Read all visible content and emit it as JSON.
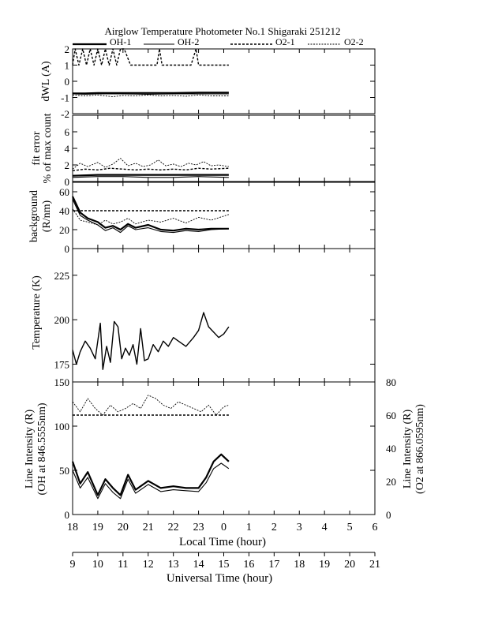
{
  "title": "Airglow Temperature Photometer No.1  Shigaraki  251212",
  "legend": [
    {
      "label": "OH-1",
      "style": "thick"
    },
    {
      "label": "OH-2",
      "style": "thin"
    },
    {
      "label": "O2-1",
      "style": "dash"
    },
    {
      "label": "O2-2",
      "style": "dot"
    }
  ],
  "panels": {
    "dwl": {
      "ylabel": "dWL (A)",
      "ticks": [
        "2",
        "1",
        "0",
        "-1",
        "-2"
      ]
    },
    "fit": {
      "ylabel1": "fit error",
      "ylabel2": "% of max count",
      "ticks": [
        "6",
        "4",
        "2",
        "0"
      ]
    },
    "bg": {
      "ylabel1": "background",
      "ylabel2": "(R/nm)",
      "ticks": [
        "60",
        "40",
        "20",
        "0"
      ]
    },
    "temp": {
      "ylabel": "Temperature (K)",
      "ticks": [
        "225",
        "200",
        "175"
      ]
    },
    "line": {
      "ylabel1": "Line Intensity (R)",
      "ylabel2": "(OH at 846.5555nm)",
      "ticks": [
        "150",
        "100",
        "50",
        "0"
      ],
      "rlabel1": "Line Intensity (R)",
      "rlabel2": "(O2 at 866.0595nm)",
      "rticks": [
        "80",
        "60",
        "40",
        "20",
        "0"
      ]
    }
  },
  "xaxis": {
    "local_label": "Local Time (hour)",
    "local_ticks": [
      "18",
      "19",
      "20",
      "21",
      "22",
      "23",
      "0",
      "1",
      "2",
      "3",
      "4",
      "5",
      "6"
    ],
    "ut_label": "Universal Time (hour)",
    "ut_ticks": [
      "9",
      "10",
      "11",
      "12",
      "13",
      "14",
      "15",
      "16",
      "17",
      "18",
      "19",
      "20",
      "21"
    ]
  },
  "chart_data": [
    {
      "type": "line",
      "panel": "dwl",
      "title": "dWL (A)",
      "x_range": [
        18,
        30
      ],
      "ylim": [
        -2,
        2
      ],
      "series": [
        {
          "name": "OH-1",
          "x": [
            18,
            18.5,
            19,
            20,
            21,
            22,
            23,
            24.2
          ],
          "values": [
            -0.75,
            -0.75,
            -0.72,
            -0.72,
            -0.72,
            -0.72,
            -0.7,
            -0.7
          ]
        },
        {
          "name": "OH-2",
          "x": [
            18,
            18.5,
            19,
            20,
            21,
            22,
            23,
            24.2
          ],
          "values": [
            -0.78,
            -0.8,
            -0.78,
            -0.78,
            -0.8,
            -0.78,
            -0.78,
            -0.78
          ]
        },
        {
          "name": "O2-1",
          "x": [
            18,
            18.1,
            18.25,
            18.4,
            18.55,
            18.7,
            18.85,
            19,
            19.15,
            19.3,
            19.45,
            19.6,
            19.75,
            19.9,
            20.05,
            20.3,
            20.6,
            21,
            21.35,
            21.45,
            21.55,
            22,
            22.5,
            22.7,
            22.9,
            23,
            23.2,
            24.2
          ],
          "values": [
            1,
            2,
            1,
            2,
            1,
            2,
            1,
            2,
            1,
            2,
            1,
            2,
            1,
            2,
            2,
            1,
            1,
            1,
            1,
            2,
            1,
            1,
            1,
            1,
            2,
            1,
            1,
            1
          ]
        },
        {
          "name": "O2-2",
          "x": [
            18,
            18.5,
            19,
            19.3,
            19.6,
            20,
            20.5,
            21,
            21.5,
            22,
            22.5,
            23,
            23.5,
            24.2
          ],
          "values": [
            -0.85,
            -0.9,
            -0.85,
            -0.9,
            -0.95,
            -0.88,
            -0.9,
            -0.85,
            -0.9,
            -0.88,
            -0.92,
            -0.85,
            -0.9,
            -0.9
          ]
        }
      ]
    },
    {
      "type": "line",
      "panel": "fit",
      "title": "fit error % of max count",
      "x_range": [
        18,
        30
      ],
      "ylim": [
        0,
        8
      ],
      "series": [
        {
          "name": "OH-1",
          "x": [
            18,
            19,
            20,
            21,
            22,
            23,
            24.2
          ],
          "values": [
            0.7,
            0.8,
            0.8,
            0.8,
            0.8,
            0.8,
            0.8
          ]
        },
        {
          "name": "OH-2",
          "x": [
            18,
            19,
            20,
            21,
            22,
            23,
            24.2
          ],
          "values": [
            0.5,
            0.6,
            0.6,
            0.5,
            0.5,
            0.6,
            0.5
          ]
        },
        {
          "name": "O2-1",
          "x": [
            18,
            18.5,
            19,
            19.5,
            20,
            20.5,
            21,
            21.5,
            22,
            22.5,
            23,
            23.5,
            24.2
          ],
          "values": [
            1.3,
            1.5,
            1.4,
            1.6,
            1.5,
            1.4,
            1.5,
            1.4,
            1.5,
            1.4,
            1.6,
            1.5,
            1.6
          ]
        },
        {
          "name": "O2-2",
          "x": [
            18,
            18.3,
            18.6,
            19,
            19.3,
            19.6,
            19.9,
            20.2,
            20.5,
            20.8,
            21.1,
            21.4,
            21.7,
            22,
            22.3,
            22.6,
            22.9,
            23.2,
            23.5,
            23.8,
            24.2
          ],
          "values": [
            1.5,
            2.2,
            1.8,
            2.3,
            1.7,
            2.1,
            2.8,
            1.9,
            2.2,
            1.8,
            2.0,
            2.6,
            1.9,
            2.1,
            1.8,
            2.2,
            2.0,
            2.4,
            1.9,
            2.0,
            1.8
          ]
        }
      ]
    },
    {
      "type": "line",
      "panel": "bg",
      "title": "background (R/nm)",
      "x_range": [
        18,
        30
      ],
      "ylim": [
        0,
        70
      ],
      "series": [
        {
          "name": "OH-1",
          "x": [
            18,
            18.3,
            18.6,
            19,
            19.3,
            19.6,
            19.9,
            20.2,
            20.5,
            21,
            21.5,
            22,
            22.5,
            23,
            23.5,
            24.2
          ],
          "values": [
            55,
            38,
            32,
            28,
            22,
            24,
            20,
            26,
            22,
            25,
            20,
            19,
            21,
            20,
            21,
            21
          ]
        },
        {
          "name": "OH-2",
          "x": [
            18,
            18.3,
            18.6,
            19,
            19.3,
            19.6,
            19.9,
            20.2,
            20.5,
            21,
            21.5,
            22,
            22.5,
            23,
            23.5,
            24.2
          ],
          "values": [
            52,
            35,
            30,
            25,
            19,
            22,
            17,
            24,
            20,
            22,
            18,
            17,
            19,
            18,
            20,
            21
          ]
        },
        {
          "name": "O2-1",
          "x": [
            18,
            19,
            20,
            21,
            22,
            23,
            24.2
          ],
          "values": [
            40,
            40,
            40,
            40,
            40,
            40,
            40
          ]
        },
        {
          "name": "O2-2",
          "x": [
            18,
            18.3,
            18.6,
            19,
            19.3,
            19.6,
            19.9,
            20.2,
            20.5,
            21,
            21.5,
            22,
            22.5,
            23,
            23.5,
            24.2
          ],
          "values": [
            42,
            30,
            28,
            25,
            30,
            26,
            28,
            32,
            26,
            30,
            28,
            32,
            27,
            33,
            30,
            36
          ]
        }
      ]
    },
    {
      "type": "line",
      "panel": "temp",
      "title": "Temperature (K)",
      "x_range": [
        18,
        30
      ],
      "ylim": [
        165,
        240
      ],
      "series": [
        {
          "name": "OH",
          "x": [
            18,
            18.15,
            18.3,
            18.5,
            18.7,
            18.9,
            19.1,
            19.2,
            19.35,
            19.5,
            19.65,
            19.8,
            19.95,
            20.1,
            20.25,
            20.4,
            20.55,
            20.7,
            20.85,
            21,
            21.2,
            21.4,
            21.6,
            21.8,
            22,
            22.2,
            22.5,
            22.8,
            23,
            23.2,
            23.4,
            23.6,
            23.8,
            24,
            24.2
          ],
          "values": [
            183,
            175,
            182,
            188,
            184,
            178,
            198,
            172,
            185,
            176,
            199,
            196,
            178,
            184,
            180,
            186,
            175,
            195,
            177,
            178,
            186,
            182,
            188,
            185,
            190,
            188,
            185,
            190,
            194,
            204,
            196,
            193,
            190,
            192,
            196
          ]
        }
      ]
    },
    {
      "type": "line",
      "panel": "line",
      "title": "Line Intensity",
      "x_range": [
        18,
        30
      ],
      "ylim_left": [
        0,
        150
      ],
      "ylim_right": [
        0,
        80
      ],
      "series": [
        {
          "name": "OH-1",
          "axis": "left",
          "x": [
            18,
            18.3,
            18.6,
            19,
            19.3,
            19.6,
            19.9,
            20.2,
            20.5,
            21,
            21.5,
            22,
            22.5,
            23,
            23.3,
            23.6,
            23.9,
            24.2
          ],
          "values": [
            60,
            35,
            48,
            22,
            40,
            30,
            22,
            45,
            28,
            38,
            30,
            32,
            30,
            30,
            42,
            60,
            68,
            60
          ]
        },
        {
          "name": "OH-2",
          "axis": "left",
          "x": [
            18,
            18.3,
            18.6,
            19,
            19.3,
            19.6,
            19.9,
            20.2,
            20.5,
            21,
            21.5,
            22,
            22.5,
            23,
            23.3,
            23.6,
            23.9,
            24.2
          ],
          "values": [
            50,
            30,
            42,
            18,
            35,
            25,
            18,
            40,
            24,
            34,
            26,
            28,
            27,
            26,
            36,
            52,
            58,
            52
          ]
        },
        {
          "name": "O2-1",
          "axis": "right",
          "x": [
            18,
            19,
            20,
            21,
            22,
            23,
            24.2
          ],
          "values": [
            60,
            60,
            60,
            60,
            60,
            60,
            60
          ]
        },
        {
          "name": "O2-2",
          "axis": "right",
          "x": [
            18,
            18.3,
            18.6,
            18.9,
            19.2,
            19.5,
            19.8,
            20.1,
            20.4,
            20.7,
            21,
            21.3,
            21.6,
            21.9,
            22.2,
            22.5,
            22.8,
            23.1,
            23.4,
            23.7,
            24,
            24.2
          ],
          "values": [
            68,
            62,
            70,
            64,
            60,
            66,
            62,
            64,
            67,
            64,
            72,
            70,
            66,
            64,
            68,
            66,
            64,
            62,
            66,
            60,
            65,
            66
          ]
        }
      ]
    }
  ]
}
